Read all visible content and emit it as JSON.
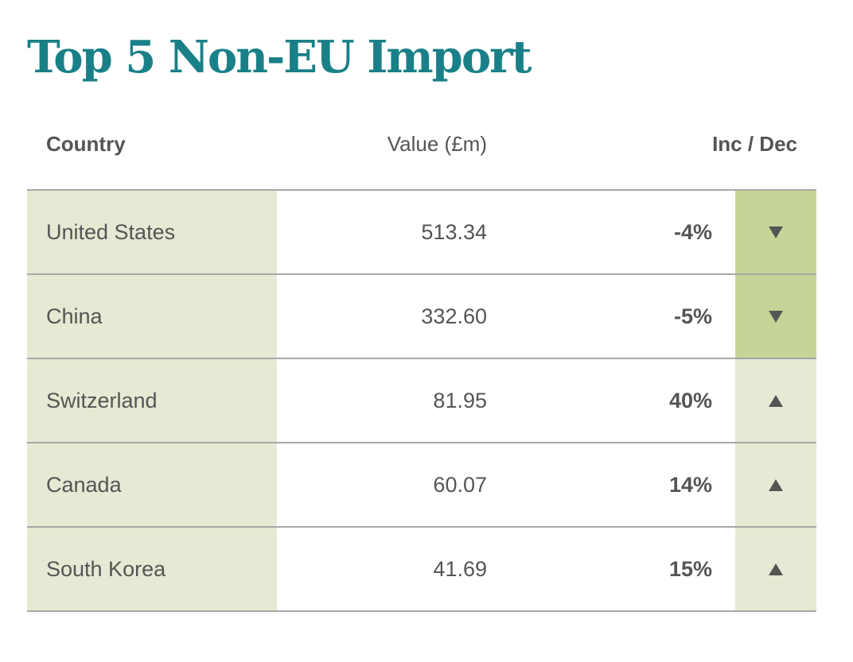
{
  "title": "Top 5 Non-EU Import",
  "headers": {
    "country": "Country",
    "value": "Value (£m)",
    "change": "Inc / Dec"
  },
  "colors": {
    "title": "#1a8088",
    "light_green": "#e4ead3",
    "dark_green": "#c5d597",
    "text": "#555555"
  },
  "chart_data": {
    "type": "table",
    "title": "Top 5 Non-EU Import",
    "columns": [
      "Country",
      "Value (£m)",
      "Inc / Dec"
    ],
    "rows": [
      {
        "country": "United States",
        "value": "513.34",
        "change": "-4%",
        "direction": "down"
      },
      {
        "country": "China",
        "value": "332.60",
        "change": "-5%",
        "direction": "down"
      },
      {
        "country": "Switzerland",
        "value": "81.95",
        "change": "40%",
        "direction": "up"
      },
      {
        "country": "Canada",
        "value": "60.07",
        "change": "14%",
        "direction": "up"
      },
      {
        "country": "South Korea",
        "value": "41.69",
        "change": "15%",
        "direction": "up"
      }
    ]
  }
}
